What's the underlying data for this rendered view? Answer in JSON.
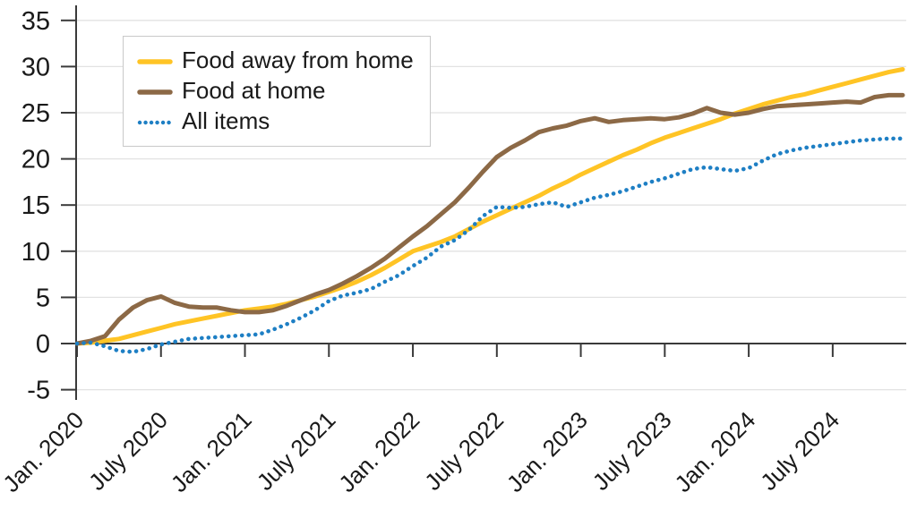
{
  "chart_data": {
    "type": "line",
    "title": "",
    "xlabel": "",
    "ylabel": "",
    "x_unit": "month",
    "x_range_start": "Jan. 2020",
    "n_points": 60,
    "x_tick_labels": [
      "Jan. 2020",
      "July 2020",
      "Jan. 2021",
      "July 2021",
      "Jan. 2022",
      "July 2022",
      "Jan. 2023",
      "July 2023",
      "Jan. 2024",
      "July 2024"
    ],
    "x_tick_every": 6,
    "ylim": [
      -5,
      35
    ],
    "y_ticks": [
      35,
      30,
      25,
      20,
      15,
      10,
      5,
      0,
      -5
    ],
    "grid": "horizontal",
    "legend_position": "top-left",
    "series": [
      {
        "name": "Food away from home",
        "color": "#FFC425",
        "style": "solid",
        "values": [
          0,
          0.1,
          0.3,
          0.5,
          0.9,
          1.3,
          1.7,
          2.1,
          2.4,
          2.7,
          3.0,
          3.3,
          3.6,
          3.8,
          4.0,
          4.3,
          4.7,
          5.1,
          5.6,
          6.1,
          6.7,
          7.4,
          8.2,
          9.1,
          10.0,
          10.5,
          11.0,
          11.6,
          12.4,
          13.2,
          13.9,
          14.6,
          15.3,
          16.0,
          16.8,
          17.5,
          18.3,
          19.0,
          19.7,
          20.4,
          21.0,
          21.7,
          22.3,
          22.8,
          23.3,
          23.8,
          24.3,
          24.9,
          25.4,
          25.9,
          26.3,
          26.7,
          27.0,
          27.4,
          27.8,
          28.2,
          28.6,
          29.0,
          29.4,
          29.7
        ]
      },
      {
        "name": "Food at home",
        "color": "#8C6946",
        "style": "solid",
        "values": [
          0,
          0.3,
          0.8,
          2.6,
          3.9,
          4.7,
          5.1,
          4.4,
          4.0,
          3.9,
          3.9,
          3.6,
          3.4,
          3.4,
          3.6,
          4.1,
          4.7,
          5.3,
          5.8,
          6.5,
          7.3,
          8.2,
          9.2,
          10.4,
          11.6,
          12.7,
          14.0,
          15.3,
          16.9,
          18.6,
          20.2,
          21.2,
          22.0,
          22.9,
          23.3,
          23.6,
          24.1,
          24.4,
          24.0,
          24.2,
          24.3,
          24.4,
          24.3,
          24.5,
          24.9,
          25.5,
          25.0,
          24.8,
          25.0,
          25.4,
          25.7,
          25.8,
          25.9,
          26.0,
          26.1,
          26.2,
          26.1,
          26.7,
          26.9,
          26.9
        ]
      },
      {
        "name": "All items",
        "color": "#1E7FC4",
        "style": "dotted",
        "values": [
          0,
          0.1,
          -0.3,
          -0.8,
          -0.9,
          -0.6,
          -0.1,
          0.2,
          0.5,
          0.6,
          0.7,
          0.8,
          0.9,
          1.0,
          1.5,
          2.1,
          2.8,
          3.6,
          4.6,
          5.2,
          5.5,
          5.9,
          6.7,
          7.4,
          8.4,
          9.3,
          10.5,
          11.2,
          12.3,
          13.8,
          14.8,
          14.7,
          14.8,
          15.1,
          15.3,
          14.8,
          15.3,
          15.8,
          16.1,
          16.5,
          17.0,
          17.5,
          17.9,
          18.4,
          18.9,
          19.1,
          18.9,
          18.7,
          19.0,
          19.8,
          20.5,
          20.9,
          21.2,
          21.4,
          21.6,
          21.8,
          22.0,
          22.1,
          22.2,
          22.2
        ]
      }
    ]
  },
  "colors": {
    "background": "#ffffff",
    "axis": "#3a3a3a",
    "grid": "#e2e2e2",
    "text": "#1a1a1a",
    "legend_border": "#c9c9c9"
  }
}
